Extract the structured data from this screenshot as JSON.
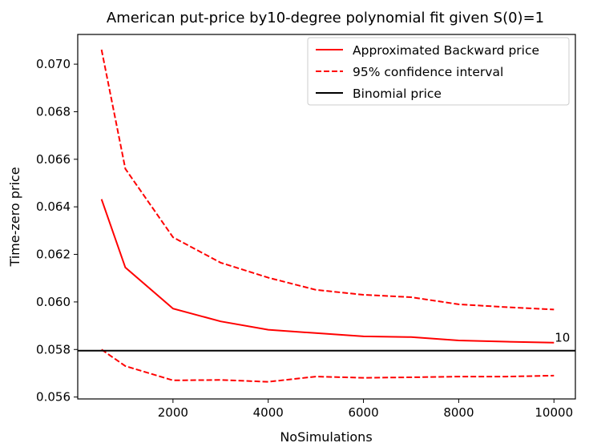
{
  "chart_data": {
    "type": "line",
    "title": "American put-price by10-degree polynomial fit given S(0)=1",
    "xlabel": "NoSimulations",
    "ylabel": "Time-zero price",
    "xlim": [
      0,
      10450
    ],
    "ylim": [
      0.05592,
      0.07125
    ],
    "xticks": [
      2000,
      4000,
      6000,
      8000,
      10000
    ],
    "yticks": [
      0.056,
      0.058,
      0.06,
      0.062,
      0.064,
      0.066,
      0.068,
      0.07
    ],
    "x": [
      500,
      1000,
      2000,
      3000,
      4000,
      5000,
      6000,
      7000,
      8000,
      9000,
      10000
    ],
    "series": [
      {
        "name": "Approximated Backward price",
        "style": "solid",
        "color": "#ff0000",
        "values": [
          0.06432,
          0.06145,
          0.05972,
          0.05918,
          0.05883,
          0.05869,
          0.05855,
          0.05852,
          0.05838,
          0.05833,
          0.05829
        ]
      },
      {
        "name": "95% confidence interval",
        "style": "dashed",
        "color": "#ff0000",
        "values": [
          0.07061,
          0.0656,
          0.06272,
          0.06165,
          0.06102,
          0.06051,
          0.0603,
          0.0602,
          0.0599,
          0.05978,
          0.05968
        ]
      },
      {
        "name": "",
        "style": "dashed",
        "color": "#ff0000",
        "values": [
          0.058,
          0.0573,
          0.0567,
          0.05672,
          0.05664,
          0.05686,
          0.05681,
          0.05683,
          0.05686,
          0.05686,
          0.0569
        ]
      }
    ],
    "hline": {
      "name": "Binomial price",
      "value": 0.05795,
      "color": "#000000"
    },
    "annotation": {
      "text": "10",
      "x": 10000,
      "y": 0.05829,
      "color": "#ff0000"
    },
    "legend": "top-right",
    "grid": false
  }
}
